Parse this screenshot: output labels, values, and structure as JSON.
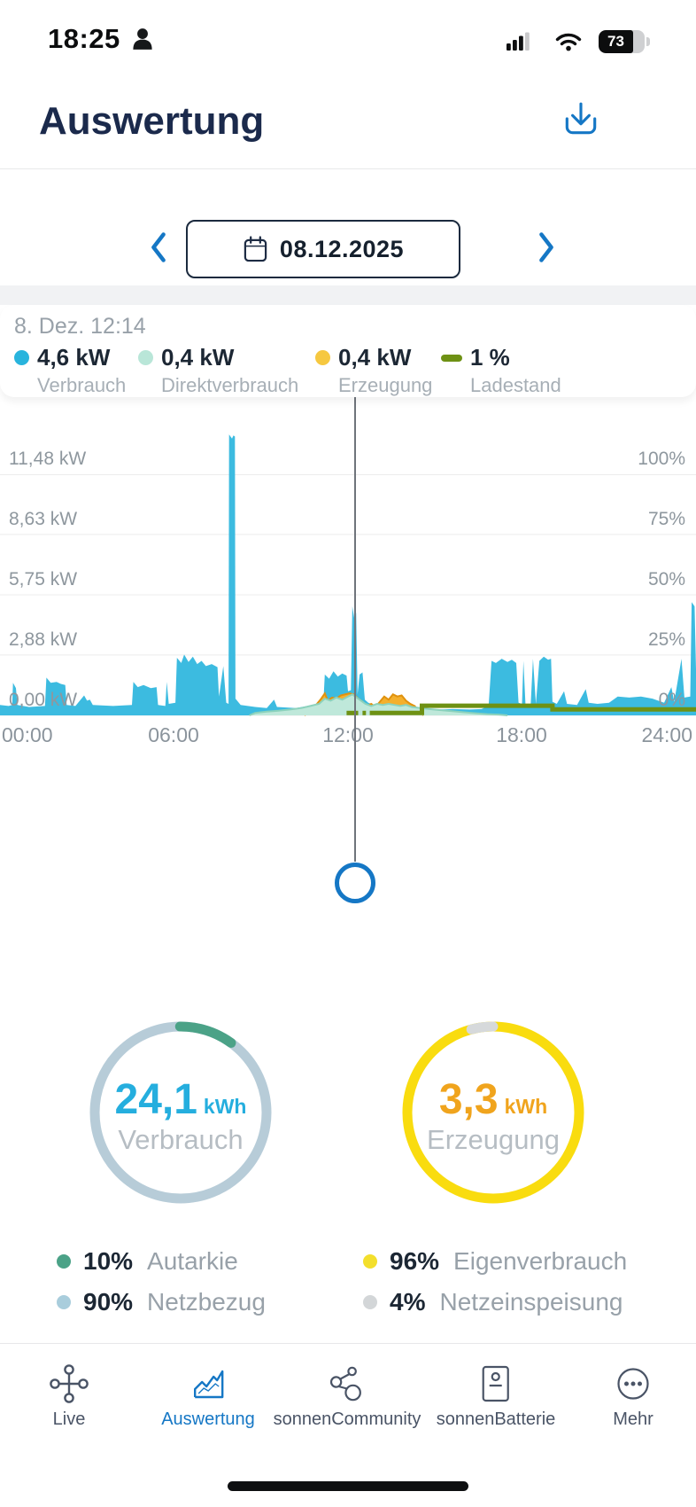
{
  "theme": {
    "accent": "#1577c5",
    "navy": "#1b2a4c",
    "text_dark": "#1c2734",
    "text_gray": "#98a1a9",
    "grid": "#ececec",
    "divider": "#e8e9ea",
    "band": "#f1f2f4"
  },
  "status_bar": {
    "time": "18:25",
    "battery_percent": "73"
  },
  "header": {
    "title": "Auswertung"
  },
  "date_nav": {
    "date": "08.12.2025"
  },
  "tooltip": {
    "timestamp": "8. Dez. 12:14",
    "items": [
      {
        "value": "4,6 kW",
        "label": "Verbrauch",
        "color": "#29b4dd"
      },
      {
        "value": "0,4 kW",
        "label": "Direktverbrauch",
        "color": "#b9e6d8"
      },
      {
        "value": "0,4 kW",
        "label": "Erzeugung",
        "color": "#f6c840"
      },
      {
        "value": "1 %",
        "label": "Ladestand",
        "color": "#6e9114"
      }
    ]
  },
  "chart_data": {
    "type": "area",
    "x_unit": "hours",
    "x_range": [
      0,
      24
    ],
    "x_ticks": [
      "00:00",
      "06:00",
      "12:00",
      "18:00",
      "24:00"
    ],
    "y_left": {
      "unit": "kW",
      "ticks": [
        "11,48 kW",
        "8,63 kW",
        "5,75 kW",
        "2,88 kW",
        "0,00 kW"
      ],
      "values": [
        11.48,
        8.63,
        5.75,
        2.88,
        0
      ]
    },
    "y_right": {
      "unit": "%",
      "ticks": [
        "100%",
        "75%",
        "50%",
        "25%",
        "0%"
      ],
      "values": [
        100,
        75,
        50,
        25,
        0
      ]
    },
    "grid": true,
    "legend_position": "top",
    "cursor": {
      "time_label": "8. Dez. 12:14",
      "hour": 12.23,
      "values": {
        "Verbrauch": "4,6 kW",
        "Direktverbrauch": "0,4 kW",
        "Erzeugung": "0,4 kW",
        "Ladestand": "1 %"
      }
    },
    "draw_order": [
      0,
      2,
      1,
      3
    ],
    "series": [
      {
        "name": "Verbrauch",
        "kind": "area",
        "axis": "kW",
        "fill": "#3cbbe0",
        "points": [
          [
            0,
            0.5
          ],
          [
            0.3,
            0.45
          ],
          [
            0.42,
            0.5
          ],
          [
            0.45,
            1.55
          ],
          [
            0.55,
            1.3
          ],
          [
            0.6,
            0.5
          ],
          [
            1.0,
            0.4
          ],
          [
            1.55,
            0.45
          ],
          [
            1.6,
            1.8
          ],
          [
            1.75,
            1.55
          ],
          [
            1.95,
            1.6
          ],
          [
            2.1,
            1.5
          ],
          [
            2.25,
            1.45
          ],
          [
            2.3,
            0.5
          ],
          [
            2.6,
            0.45
          ],
          [
            2.9,
            0.95
          ],
          [
            3.0,
            0.7
          ],
          [
            3.1,
            0.75
          ],
          [
            3.2,
            0.5
          ],
          [
            3.9,
            0.45
          ],
          [
            4.55,
            0.5
          ],
          [
            4.6,
            1.6
          ],
          [
            4.75,
            1.35
          ],
          [
            4.95,
            1.45
          ],
          [
            5.2,
            1.3
          ],
          [
            5.4,
            1.35
          ],
          [
            5.45,
            0.5
          ],
          [
            5.7,
            0.45
          ],
          [
            5.75,
            1.6
          ],
          [
            5.82,
            0.55
          ],
          [
            6.05,
            0.6
          ],
          [
            6.1,
            2.75
          ],
          [
            6.25,
            2.5
          ],
          [
            6.35,
            2.9
          ],
          [
            6.5,
            2.55
          ],
          [
            6.65,
            2.8
          ],
          [
            6.8,
            2.45
          ],
          [
            6.95,
            2.6
          ],
          [
            7.1,
            2.35
          ],
          [
            7.3,
            2.45
          ],
          [
            7.5,
            2.3
          ],
          [
            7.55,
            0.9
          ],
          [
            7.7,
            2.35
          ],
          [
            7.8,
            0.6
          ],
          [
            7.88,
            0.55
          ],
          [
            7.9,
            13.4
          ],
          [
            8.0,
            13.2
          ],
          [
            8.05,
            13.35
          ],
          [
            8.1,
            13.3
          ],
          [
            8.12,
            0.8
          ],
          [
            8.3,
            0.5
          ],
          [
            8.8,
            0.4
          ],
          [
            9.2,
            0.35
          ],
          [
            9.45,
            0.75
          ],
          [
            9.55,
            0.4
          ],
          [
            10.2,
            0.35
          ],
          [
            10.6,
            0.45
          ],
          [
            10.9,
            0.55
          ],
          [
            11.15,
            0.6
          ],
          [
            11.2,
            1.95
          ],
          [
            11.35,
            1.75
          ],
          [
            11.5,
            2.1
          ],
          [
            11.65,
            1.85
          ],
          [
            11.8,
            2.0
          ],
          [
            11.95,
            1.9
          ],
          [
            12.0,
            1.15
          ],
          [
            12.1,
            1.2
          ],
          [
            12.15,
            5.2
          ],
          [
            12.22,
            4.6
          ],
          [
            12.28,
            4.9
          ],
          [
            12.33,
            1.0
          ],
          [
            12.4,
            1.95
          ],
          [
            12.5,
            2.05
          ],
          [
            12.58,
            0.75
          ],
          [
            12.7,
            0.6
          ],
          [
            12.9,
            0.5
          ],
          [
            13.2,
            0.45
          ],
          [
            13.6,
            0.4
          ],
          [
            14.0,
            0.35
          ],
          [
            14.4,
            0.3
          ],
          [
            15.0,
            0.28
          ],
          [
            15.6,
            0.3
          ],
          [
            16.2,
            0.28
          ],
          [
            16.6,
            0.3
          ],
          [
            16.85,
            0.45
          ],
          [
            16.95,
            2.6
          ],
          [
            17.1,
            2.5
          ],
          [
            17.3,
            2.7
          ],
          [
            17.5,
            2.55
          ],
          [
            17.65,
            2.65
          ],
          [
            17.8,
            2.5
          ],
          [
            17.88,
            0.6
          ],
          [
            18.0,
            0.55
          ],
          [
            18.05,
            2.6
          ],
          [
            18.12,
            0.55
          ],
          [
            18.3,
            0.5
          ],
          [
            18.38,
            2.7
          ],
          [
            18.48,
            0.55
          ],
          [
            18.6,
            2.6
          ],
          [
            18.75,
            2.8
          ],
          [
            18.9,
            2.65
          ],
          [
            19.0,
            2.7
          ],
          [
            19.05,
            0.65
          ],
          [
            19.2,
            0.55
          ],
          [
            19.45,
            1.15
          ],
          [
            19.55,
            0.55
          ],
          [
            19.9,
            0.5
          ],
          [
            20.2,
            1.25
          ],
          [
            20.3,
            0.6
          ],
          [
            20.6,
            0.55
          ],
          [
            21.0,
            0.6
          ],
          [
            21.3,
            0.9
          ],
          [
            21.7,
            0.85
          ],
          [
            22.1,
            0.9
          ],
          [
            22.5,
            0.8
          ],
          [
            22.9,
            0.6
          ],
          [
            23.15,
            1.35
          ],
          [
            23.25,
            0.65
          ],
          [
            23.5,
            2.7
          ],
          [
            23.6,
            0.85
          ],
          [
            23.8,
            0.9
          ],
          [
            23.85,
            5.4
          ],
          [
            23.95,
            5.2
          ],
          [
            24,
            2.2
          ]
        ]
      },
      {
        "name": "Direktverbrauch",
        "kind": "area",
        "axis": "kW",
        "fill": "#bfe8da",
        "stroke": "#8cd2bc",
        "points": [
          [
            8.6,
            0
          ],
          [
            8.8,
            0.12
          ],
          [
            9.2,
            0.18
          ],
          [
            9.6,
            0.22
          ],
          [
            10.0,
            0.28
          ],
          [
            10.4,
            0.35
          ],
          [
            10.7,
            0.45
          ],
          [
            11.0,
            0.55
          ],
          [
            11.2,
            0.8
          ],
          [
            11.4,
            0.7
          ],
          [
            11.6,
            0.85
          ],
          [
            11.8,
            0.75
          ],
          [
            12.0,
            0.9
          ],
          [
            12.15,
            1.0
          ],
          [
            12.3,
            0.85
          ],
          [
            12.45,
            0.7
          ],
          [
            12.6,
            0.55
          ],
          [
            12.8,
            0.45
          ],
          [
            13.0,
            0.55
          ],
          [
            13.2,
            0.5
          ],
          [
            13.4,
            0.55
          ],
          [
            13.6,
            0.5
          ],
          [
            13.8,
            0.45
          ],
          [
            14.0,
            0.5
          ],
          [
            14.2,
            0.4
          ],
          [
            14.5,
            0.35
          ],
          [
            14.8,
            0.3
          ],
          [
            15.2,
            0.25
          ],
          [
            15.6,
            0.2
          ],
          [
            16.0,
            0.15
          ],
          [
            16.4,
            0.1
          ],
          [
            16.8,
            0.06
          ],
          [
            17.2,
            0.04
          ],
          [
            17.5,
            0
          ]
        ]
      },
      {
        "name": "Erzeugung",
        "kind": "area",
        "axis": "kW",
        "fill": "#f4b02d",
        "stroke": "#e0920e",
        "points": [
          [
            10.5,
            0
          ],
          [
            10.7,
            0.25
          ],
          [
            10.9,
            0.5
          ],
          [
            11.05,
            0.75
          ],
          [
            11.2,
            1.05
          ],
          [
            11.3,
            0.7
          ],
          [
            11.45,
            0.85
          ],
          [
            11.6,
            0.8
          ],
          [
            11.75,
            0.95
          ],
          [
            11.9,
            1.0
          ],
          [
            12.05,
            1.05
          ],
          [
            12.2,
            1.0
          ],
          [
            12.35,
            0.8
          ],
          [
            12.5,
            0.65
          ],
          [
            12.65,
            0.45
          ],
          [
            12.8,
            0.55
          ],
          [
            12.95,
            0.4
          ],
          [
            13.1,
            0.65
          ],
          [
            13.25,
            0.9
          ],
          [
            13.4,
            0.75
          ],
          [
            13.55,
            1.0
          ],
          [
            13.7,
            0.9
          ],
          [
            13.85,
            0.95
          ],
          [
            14.0,
            0.7
          ],
          [
            14.15,
            0.55
          ],
          [
            14.3,
            0.45
          ],
          [
            14.45,
            0.2
          ],
          [
            14.6,
            0
          ]
        ]
      },
      {
        "name": "Ladestand",
        "kind": "line",
        "axis": "percent",
        "color": "#6e9114",
        "segments": [
          [
            [
              11.95,
              1
            ],
            [
              12.35,
              1
            ]
          ],
          [
            [
              12.5,
              1
            ],
            [
              12.62,
              1
            ]
          ],
          [
            [
              12.75,
              1
            ],
            [
              14.55,
              1
            ],
            [
              14.55,
              4
            ],
            [
              19.05,
              4
            ],
            [
              19.05,
              2.5
            ],
            [
              24,
              2.5
            ]
          ]
        ]
      }
    ]
  },
  "donuts": [
    {
      "value": "24,1",
      "unit": "kWh",
      "label": "Verbrauch",
      "value_color": "#25aede",
      "ring_color": "#b7ccd8",
      "arc": {
        "pct": 10,
        "color": "#4ba287",
        "start_deg": 0
      }
    },
    {
      "value": "3,3",
      "unit": "kWh",
      "label": "Erzeugung",
      "value_color": "#f0a41d",
      "ring_color": "#f9dc0f",
      "arc": {
        "pct": 4,
        "color": "#d6d9db",
        "start_deg": -14.4
      }
    }
  ],
  "summary_legend": [
    {
      "pct": "10%",
      "label": "Autarkie",
      "dot_color": "#4ba287"
    },
    {
      "pct": "90%",
      "label": "Netzbezug",
      "dot_color": "#a9cddc"
    },
    {
      "pct": "96%",
      "label": "Eigenverbrauch",
      "dot_color": "#f3df2c"
    },
    {
      "pct": "4%",
      "label": "Netzeinspeisung",
      "dot_color": "#d3d6d8"
    }
  ],
  "tab_bar": {
    "items": [
      {
        "label": "Live",
        "active": false
      },
      {
        "label": "Auswertung",
        "active": true
      },
      {
        "label": "sonnenCommunity",
        "active": false
      },
      {
        "label": "sonnenBatterie",
        "active": false
      },
      {
        "label": "Mehr",
        "active": false
      }
    ]
  }
}
